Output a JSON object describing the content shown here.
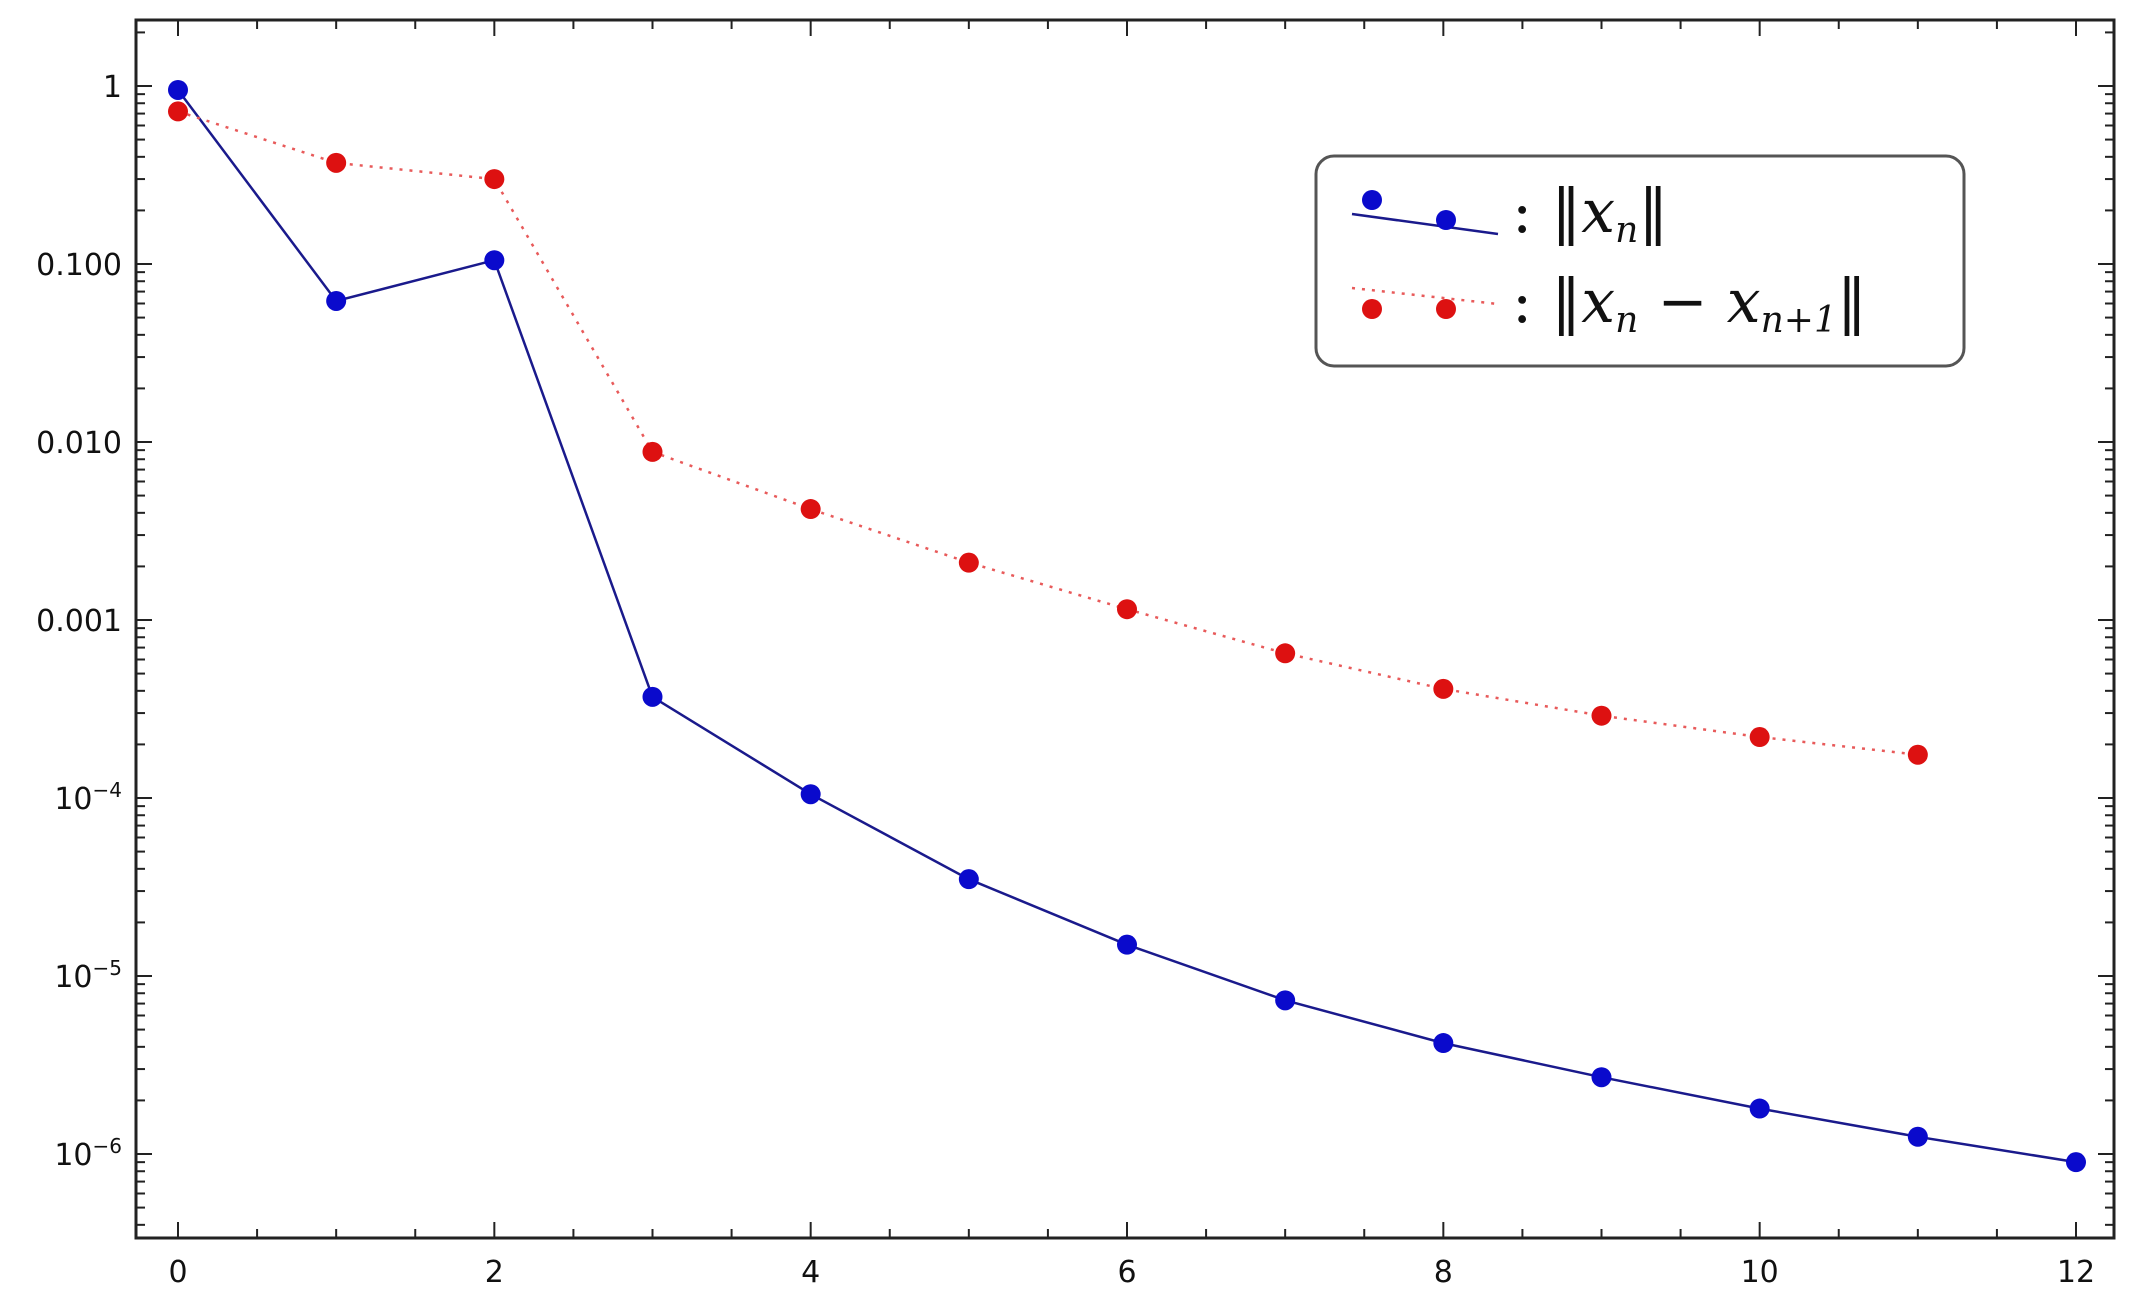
{
  "chart_data": {
    "type": "line",
    "title": "",
    "xlabel": "",
    "ylabel": "",
    "xlim": [
      -0.25,
      12.25
    ],
    "ylim": [
      1e-07,
      2.2
    ],
    "yscale": "log",
    "grid": false,
    "legend_position": "top-right",
    "x_ticks": [
      0,
      2,
      4,
      6,
      8,
      10,
      12
    ],
    "x_tick_labels": [
      "0",
      "2",
      "4",
      "6",
      "8",
      "10",
      "12"
    ],
    "y_ticks": [
      1,
      0.1,
      0.01,
      0.001,
      0.0001,
      1e-05,
      1e-06
    ],
    "y_tick_labels": [
      {
        "base": "1",
        "exp": ""
      },
      {
        "base": "0.100",
        "exp": ""
      },
      {
        "base": "0.010",
        "exp": ""
      },
      {
        "base": "0.001",
        "exp": ""
      },
      {
        "base": "10",
        "exp": "−4"
      },
      {
        "base": "10",
        "exp": "−5"
      },
      {
        "base": "10",
        "exp": "−6"
      }
    ],
    "series": [
      {
        "key": "xn",
        "color": "#0a0acc",
        "line_color": "#1a1a8c",
        "line_style": "solid",
        "legend": {
          "prefix": ": ‖",
          "var": "x",
          "sub": "n",
          "mid": "",
          "var2": "",
          "sub2": "",
          "suffix": "‖"
        },
        "x": [
          0,
          1,
          2,
          3,
          4,
          5,
          6,
          7,
          8,
          9,
          10,
          11,
          12
        ],
        "y": [
          0.95,
          0.062,
          0.105,
          0.00037,
          0.000105,
          3.5e-05,
          1.5e-05,
          7.3e-06,
          4.2e-06,
          2.7e-06,
          1.8e-06,
          1.25e-06,
          9e-07
        ]
      },
      {
        "key": "diff",
        "color": "#dd1111",
        "line_color": "#e85a5a",
        "line_style": "dotted",
        "legend": {
          "prefix": ": ‖",
          "var": "x",
          "sub": "n",
          "mid": " − ",
          "var2": "x",
          "sub2": "n+1",
          "suffix": "‖"
        },
        "x": [
          0,
          1,
          2,
          3,
          4,
          5,
          6,
          7,
          8,
          9,
          10,
          11
        ],
        "y": [
          0.72,
          0.37,
          0.3,
          0.0088,
          0.0042,
          0.0021,
          0.00115,
          0.00065,
          0.00041,
          0.00029,
          0.00022,
          0.000175
        ]
      }
    ]
  }
}
